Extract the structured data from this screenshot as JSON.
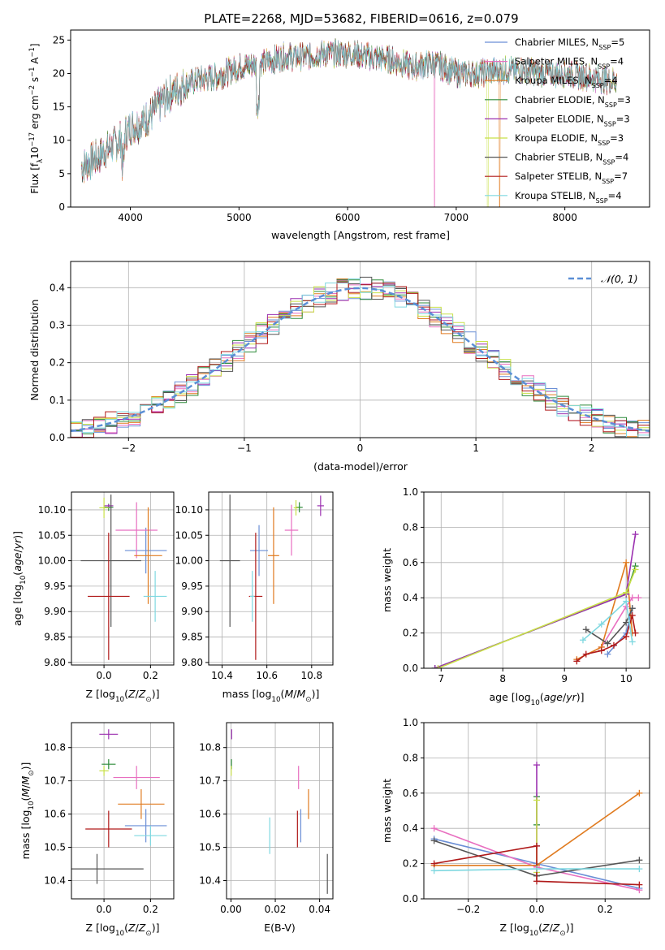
{
  "figure": {
    "title": "PLATE=2268, MJD=53682, FIBERID=0616, z=0.079"
  },
  "colors": {
    "chabrier_miles": "#6b8fd6",
    "salpeter_miles": "#e86fc0",
    "kroupa_miles": "#e07b20",
    "chabrier_elodie": "#2e8b3a",
    "salpeter_elodie": "#9b30b0",
    "kroupa_elodie": "#c8e048",
    "chabrier_stelib": "#555555",
    "salpeter_stelib": "#b01a1a",
    "kroupa_stelib": "#7fd8e0",
    "normal_curve": "#5b8fd6"
  },
  "chart_data": [
    {
      "type": "line",
      "id": "spectrum",
      "title": "PLATE=2268, MJD=53682, FIBERID=0616, z=0.079",
      "xlabel": "wavelength [Angstrom, rest frame]",
      "ylabel": "Flux [f_λ 10^-17 erg cm^-2 s^-1 A^-1]",
      "xlim": [
        3450,
        8780
      ],
      "ylim": [
        0,
        26.5
      ],
      "xticks": [
        4000,
        5000,
        6000,
        7000,
        8000
      ],
      "yticks": [
        0,
        5,
        10,
        15,
        20,
        25
      ],
      "grid": false,
      "legend_position": "top-right",
      "continuum_x": [
        3550,
        3700,
        3900,
        4000,
        4100,
        4200,
        4300,
        4400,
        4600,
        4800,
        5000,
        5200,
        5400,
        5600,
        5800,
        6000,
        6200,
        6400,
        6600,
        6800,
        7000,
        7200,
        7400,
        7600,
        7800,
        8000,
        8200,
        8400,
        8480
      ],
      "continuum_y": [
        6,
        7.5,
        10,
        12,
        12.5,
        14,
        16,
        17.5,
        19,
        19.5,
        21,
        21.5,
        22.5,
        22.5,
        23,
        23,
        22.5,
        22,
        21,
        21.5,
        20,
        20,
        20.5,
        20.5,
        20,
        20,
        19.5,
        19,
        19
      ],
      "series": [
        {
          "name": "Chabrier MILES, N_SSP=5",
          "label_main": "Chabrier MILES, N",
          "label_sub": "SSP",
          "label_tail": "=5",
          "color_key": "chabrier_miles"
        },
        {
          "name": "Salpeter MILES, N_SSP=4",
          "label_main": "Salpeter MILES, N",
          "label_sub": "SSP",
          "label_tail": "=4",
          "color_key": "salpeter_miles"
        },
        {
          "name": "Kroupa MILES, N_SSP=4",
          "label_main": "Kroupa MILES, N",
          "label_sub": "SSP",
          "label_tail": "=4",
          "color_key": "kroupa_miles"
        },
        {
          "name": "Chabrier ELODIE, N_SSP=3",
          "label_main": "Chabrier ELODIE, N",
          "label_sub": "SSP",
          "label_tail": "=3",
          "color_key": "chabrier_elodie"
        },
        {
          "name": "Salpeter ELODIE, N_SSP=3",
          "label_main": "Salpeter ELODIE, N",
          "label_sub": "SSP",
          "label_tail": "=3",
          "color_key": "salpeter_elodie"
        },
        {
          "name": "Kroupa ELODIE, N_SSP=3",
          "label_main": "Kroupa ELODIE, N",
          "label_sub": "SSP",
          "label_tail": "=3",
          "color_key": "kroupa_elodie"
        },
        {
          "name": "Chabrier STELIB, N_SSP=4",
          "label_main": "Chabrier STELIB, N",
          "label_sub": "SSP",
          "label_tail": "=4",
          "color_key": "chabrier_stelib"
        },
        {
          "name": "Salpeter STELIB, N_SSP=7",
          "label_main": "Salpeter STELIB, N",
          "label_sub": "SSP",
          "label_tail": "=7",
          "color_key": "salpeter_stelib"
        },
        {
          "name": "Kroupa STELIB, N_SSP=4",
          "label_main": "Kroupa STELIB, N",
          "label_sub": "SSP",
          "label_tail": "=4",
          "color_key": "kroupa_stelib"
        }
      ]
    },
    {
      "type": "bar",
      "id": "residuals",
      "xlabel": "(data-model)/error",
      "ylabel": "Normed distribution",
      "xlim": [
        -2.5,
        2.5
      ],
      "ylim": [
        0,
        0.47
      ],
      "xticks": [
        -2,
        -1,
        0,
        1,
        2
      ],
      "yticks": [
        0.0,
        0.1,
        0.2,
        0.3,
        0.4
      ],
      "grid": true,
      "bin_width": 0.1,
      "legend": "𝒩(0, 1)",
      "legend_position": "top-right",
      "normal_curve": {
        "mean": 0,
        "sigma": 1
      }
    },
    {
      "type": "scatter",
      "id": "age_vs_Z",
      "xlabel": "Z [log10(Z/Z☉)]",
      "ylabel": "age [log10(age/yr)]",
      "xlim": [
        -0.14,
        0.3
      ],
      "ylim": [
        9.795,
        10.135
      ],
      "xticks": [
        0.0,
        0.2
      ],
      "yticks": [
        9.8,
        9.85,
        9.9,
        9.95,
        10.0,
        10.05,
        10.1
      ],
      "points": [
        {
          "color_key": "chabrier_miles",
          "x": 0.18,
          "xerr": 0.09,
          "y": 10.02,
          "yerr": 0.045
        },
        {
          "color_key": "salpeter_miles",
          "x": 0.14,
          "xerr": 0.09,
          "y": 10.06,
          "yerr": 0.055
        },
        {
          "color_key": "kroupa_miles",
          "x": 0.19,
          "xerr": 0.06,
          "y": 10.01,
          "yerr": 0.095
        },
        {
          "color_key": "chabrier_elodie",
          "x": 0.02,
          "xerr": 0.02,
          "y": 10.105,
          "yerr": 0.007
        },
        {
          "color_key": "salpeter_elodie",
          "x": 0.02,
          "xerr": 0.02,
          "y": 10.108,
          "yerr": 0.003
        },
        {
          "color_key": "kroupa_elodie",
          "x": 0.0,
          "xerr": 0.02,
          "y": 10.104,
          "yerr": 0.02
        },
        {
          "color_key": "chabrier_stelib",
          "x": 0.03,
          "xerr": 0.13,
          "y": 10.0,
          "yerr": 0.13
        },
        {
          "color_key": "salpeter_stelib",
          "x": 0.02,
          "xerr": 0.09,
          "y": 9.93,
          "yerr": 0.125
        },
        {
          "color_key": "kroupa_stelib",
          "x": 0.22,
          "xerr": 0.05,
          "y": 9.93,
          "yerr": 0.05
        }
      ]
    },
    {
      "type": "scatter",
      "id": "age_vs_mass",
      "xlabel": "mass [log10(M/M☉)]",
      "ylabel": "",
      "xlim": [
        10.34,
        10.895
      ],
      "ylim": [
        9.795,
        10.135
      ],
      "xticks": [
        10.4,
        10.6,
        10.8
      ],
      "yticks": [
        9.8,
        9.85,
        9.9,
        9.95,
        10.0,
        10.05,
        10.1
      ],
      "points": [
        {
          "color_key": "chabrier_miles",
          "x": 10.565,
          "xerr": 0.04,
          "y": 10.02,
          "yerr": 0.05
        },
        {
          "color_key": "salpeter_miles",
          "x": 10.71,
          "xerr": 0.03,
          "y": 10.06,
          "yerr": 0.05
        },
        {
          "color_key": "kroupa_miles",
          "x": 10.63,
          "xerr": 0.025,
          "y": 10.01,
          "yerr": 0.095
        },
        {
          "color_key": "chabrier_elodie",
          "x": 10.745,
          "xerr": 0.015,
          "y": 10.105,
          "yerr": 0.01
        },
        {
          "color_key": "salpeter_elodie",
          "x": 10.84,
          "xerr": 0.015,
          "y": 10.108,
          "yerr": 0.02
        },
        {
          "color_key": "kroupa_elodie",
          "x": 10.73,
          "xerr": 0.01,
          "y": 10.104,
          "yerr": 0.015
        },
        {
          "color_key": "chabrier_stelib",
          "x": 10.435,
          "xerr": 0.045,
          "y": 10.0,
          "yerr": 0.13
        },
        {
          "color_key": "salpeter_stelib",
          "x": 10.55,
          "xerr": 0.03,
          "y": 9.93,
          "yerr": 0.125
        },
        {
          "color_key": "kroupa_stelib",
          "x": 10.535,
          "xerr": 0.01,
          "y": 9.93,
          "yerr": 0.05
        }
      ]
    },
    {
      "type": "line",
      "id": "weight_vs_age",
      "xlabel": "age [log10(age/yr)]",
      "ylabel": "mass weight",
      "xlim": [
        6.72,
        10.38
      ],
      "ylim": [
        0.0,
        1.0
      ],
      "xticks": [
        7,
        8,
        9,
        10
      ],
      "yticks": [
        0.0,
        0.2,
        0.4,
        0.6,
        0.8,
        1.0
      ],
      "grid": true,
      "series": [
        {
          "color_key": "chabrier_miles",
          "x": [
            9.7,
            10.0,
            10.1
          ],
          "y": [
            0.08,
            0.2,
            0.34
          ]
        },
        {
          "color_key": "salpeter_miles",
          "x": [
            9.6,
            10.0,
            10.1,
            10.2
          ],
          "y": [
            0.12,
            0.35,
            0.4,
            0.4
          ]
        },
        {
          "color_key": "kroupa_miles",
          "x": [
            9.2,
            9.6,
            10.0,
            10.1
          ],
          "y": [
            0.05,
            0.12,
            0.6,
            0.2
          ]
        },
        {
          "color_key": "chabrier_elodie",
          "x": [
            6.9,
            10.0,
            10.15
          ],
          "y": [
            0.0,
            0.42,
            0.58
          ]
        },
        {
          "color_key": "salpeter_elodie",
          "x": [
            6.9,
            10.0,
            10.15
          ],
          "y": [
            0.0,
            0.42,
            0.76
          ]
        },
        {
          "color_key": "kroupa_elodie",
          "x": [
            6.95,
            10.0,
            10.15
          ],
          "y": [
            0.0,
            0.43,
            0.56
          ]
        },
        {
          "color_key": "chabrier_stelib",
          "x": [
            9.35,
            9.7,
            10.0,
            10.1
          ],
          "y": [
            0.22,
            0.14,
            0.26,
            0.34
          ]
        },
        {
          "color_key": "salpeter_stelib",
          "x": [
            9.2,
            9.35,
            9.6,
            9.8,
            10.0,
            10.1,
            10.15
          ],
          "y": [
            0.04,
            0.08,
            0.1,
            0.13,
            0.18,
            0.3,
            0.2
          ]
        },
        {
          "color_key": "kroupa_stelib",
          "x": [
            9.3,
            9.6,
            10.0,
            10.1
          ],
          "y": [
            0.16,
            0.25,
            0.38,
            0.15
          ]
        }
      ]
    },
    {
      "type": "scatter",
      "id": "mass_vs_Z",
      "xlabel": "Z [log10(Z/Z☉)]",
      "ylabel": "mass [log10(M/M☉)]",
      "xlim": [
        -0.14,
        0.3
      ],
      "ylim": [
        10.345,
        10.875
      ],
      "xticks": [
        0.0,
        0.2
      ],
      "yticks": [
        10.4,
        10.5,
        10.6,
        10.7,
        10.8
      ],
      "points": [
        {
          "color_key": "chabrier_miles",
          "x": 0.18,
          "xerr": 0.09,
          "y": 10.565,
          "yerr": 0.05
        },
        {
          "color_key": "salpeter_miles",
          "x": 0.14,
          "xerr": 0.1,
          "y": 10.71,
          "yerr": 0.035
        },
        {
          "color_key": "kroupa_miles",
          "x": 0.16,
          "xerr": 0.1,
          "y": 10.63,
          "yerr": 0.045
        },
        {
          "color_key": "chabrier_elodie",
          "x": 0.02,
          "xerr": 0.03,
          "y": 10.75,
          "yerr": 0.015
        },
        {
          "color_key": "salpeter_elodie",
          "x": 0.02,
          "xerr": 0.04,
          "y": 10.84,
          "yerr": 0.015
        },
        {
          "color_key": "kroupa_elodie",
          "x": 0.0,
          "xerr": 0.02,
          "y": 10.73,
          "yerr": 0.015
        },
        {
          "color_key": "chabrier_stelib",
          "x": -0.03,
          "xerr": 0.2,
          "y": 10.435,
          "yerr": 0.045
        },
        {
          "color_key": "salpeter_stelib",
          "x": 0.02,
          "xerr": 0.1,
          "y": 10.555,
          "yerr": 0.055
        },
        {
          "color_key": "kroupa_stelib",
          "x": 0.2,
          "xerr": 0.07,
          "y": 10.535,
          "yerr": 0.03
        }
      ]
    },
    {
      "type": "scatter",
      "id": "mass_vs_ebv",
      "xlabel": "E(B-V)",
      "ylabel": "",
      "xlim": [
        -0.002,
        0.046
      ],
      "ylim": [
        10.345,
        10.875
      ],
      "xticks": [
        0.0,
        0.02,
        0.04
      ],
      "yticks": [
        10.4,
        10.5,
        10.6,
        10.7,
        10.8
      ],
      "points": [
        {
          "color_key": "chabrier_miles",
          "x": 0.0315,
          "xerr": 0,
          "y": 10.565,
          "yerr": 0.05
        },
        {
          "color_key": "salpeter_miles",
          "x": 0.0305,
          "xerr": 0,
          "y": 10.71,
          "yerr": 0.035
        },
        {
          "color_key": "kroupa_miles",
          "x": 0.035,
          "xerr": 0,
          "y": 10.63,
          "yerr": 0.045
        },
        {
          "color_key": "chabrier_elodie",
          "x": 0.0002,
          "xerr": 0,
          "y": 10.75,
          "yerr": 0.015
        },
        {
          "color_key": "salpeter_elodie",
          "x": 0.0003,
          "xerr": 0,
          "y": 10.84,
          "yerr": 0.015
        },
        {
          "color_key": "kroupa_elodie",
          "x": 0.0001,
          "xerr": 0,
          "y": 10.73,
          "yerr": 0.015
        },
        {
          "color_key": "chabrier_stelib",
          "x": 0.0435,
          "xerr": 0,
          "y": 10.42,
          "yerr": 0.06
        },
        {
          "color_key": "salpeter_stelib",
          "x": 0.03,
          "xerr": 0,
          "y": 10.555,
          "yerr": 0.055
        },
        {
          "color_key": "kroupa_stelib",
          "x": 0.0175,
          "xerr": 0,
          "y": 10.535,
          "yerr": 0.055
        }
      ]
    },
    {
      "type": "line",
      "id": "weight_vs_Z",
      "xlabel": "Z [log10(Z/Z☉)]",
      "ylabel": "mass weight",
      "xlim": [
        -0.33,
        0.33
      ],
      "ylim": [
        0.0,
        1.0
      ],
      "xticks": [
        -0.2,
        0.0,
        0.2
      ],
      "yticks": [
        0.0,
        0.2,
        0.4,
        0.6,
        0.8,
        1.0
      ],
      "grid": true,
      "series": [
        {
          "color_key": "chabrier_miles",
          "x": [
            -0.3,
            0.0,
            0.3
          ],
          "y": [
            0.34,
            0.2,
            0.06
          ]
        },
        {
          "color_key": "salpeter_miles",
          "x": [
            -0.3,
            0.0,
            0.3
          ],
          "y": [
            0.4,
            0.18,
            0.05
          ]
        },
        {
          "color_key": "kroupa_miles",
          "x": [
            -0.3,
            0.0,
            0.3
          ],
          "y": [
            0.19,
            0.19,
            0.6
          ]
        },
        {
          "color_key": "chabrier_elodie",
          "x": [
            0.0,
            0.0
          ],
          "y": [
            0.42,
            0.58
          ]
        },
        {
          "color_key": "salpeter_elodie",
          "x": [
            0.0,
            0.0
          ],
          "y": [
            0.3,
            0.76
          ]
        },
        {
          "color_key": "kroupa_elodie",
          "x": [
            0.0,
            0.0
          ],
          "y": [
            0.15,
            0.56
          ]
        },
        {
          "color_key": "chabrier_stelib",
          "x": [
            -0.3,
            0.0,
            0.3
          ],
          "y": [
            0.33,
            0.13,
            0.22
          ]
        },
        {
          "color_key": "salpeter_stelib",
          "x": [
            -0.3,
            0.0,
            0.0,
            0.3
          ],
          "y": [
            0.2,
            0.3,
            0.1,
            0.08
          ]
        },
        {
          "color_key": "kroupa_stelib",
          "x": [
            -0.3,
            0.0,
            0.3
          ],
          "y": [
            0.16,
            0.17,
            0.17
          ]
        }
      ]
    }
  ]
}
